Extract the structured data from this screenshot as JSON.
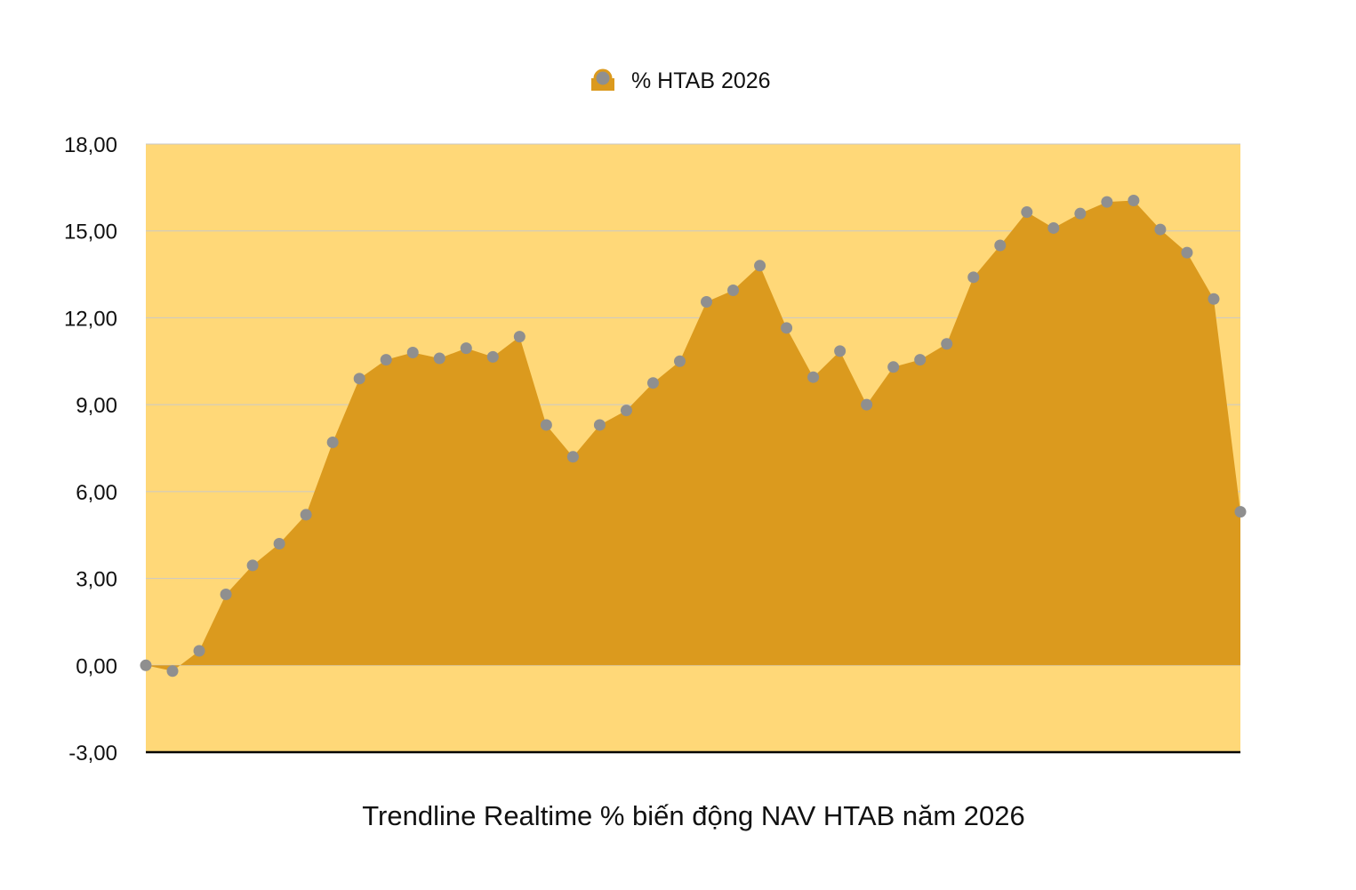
{
  "legend": {
    "label": "% HTAB 2026"
  },
  "caption": "Trendline Realtime % biến động NAV HTAB năm 2026",
  "colors": {
    "plot_background": "#FFD878",
    "area_fill": "#DB9A1E",
    "marker": "#8F8F8F",
    "gridline": "#C9C9C9",
    "baseline": "#000000"
  },
  "chart_data": {
    "type": "area",
    "title": "",
    "xlabel": "",
    "ylabel": "",
    "ylim": [
      -3,
      18
    ],
    "yticks": [
      18,
      15,
      12,
      9,
      6,
      3,
      0,
      -3
    ],
    "ytick_labels": [
      "18,00",
      "15,00",
      "12,00",
      "9,00",
      "6,00",
      "3,00",
      "0,00",
      "-3,00"
    ],
    "grid": true,
    "legend_position": "top-center",
    "series": [
      {
        "name": "% HTAB 2026",
        "values": [
          0.0,
          -0.2,
          0.5,
          2.45,
          3.45,
          4.2,
          5.2,
          7.7,
          9.9,
          10.55,
          10.8,
          10.6,
          10.95,
          10.65,
          11.35,
          8.3,
          7.2,
          8.3,
          8.8,
          9.75,
          10.5,
          12.55,
          12.95,
          13.8,
          11.65,
          9.95,
          10.85,
          9.0,
          10.3,
          10.55,
          11.1,
          13.4,
          14.5,
          15.65,
          15.1,
          15.6,
          16.0,
          16.05,
          15.05,
          14.25,
          12.65,
          5.3
        ]
      }
    ]
  }
}
